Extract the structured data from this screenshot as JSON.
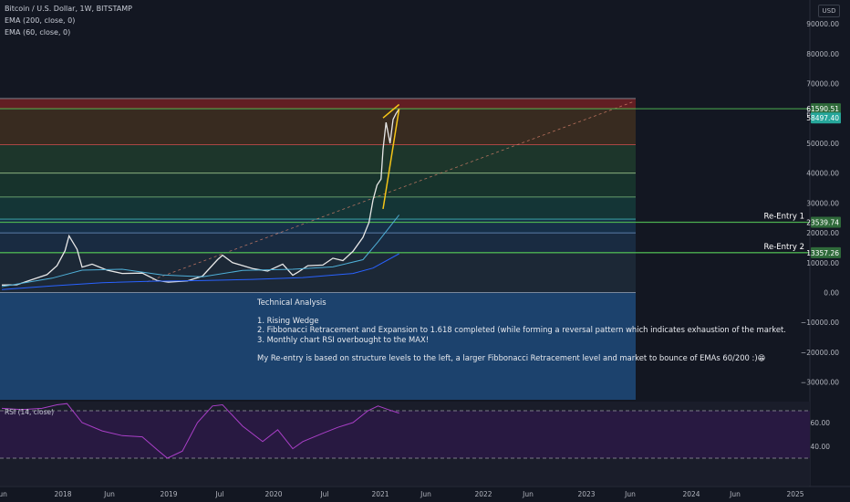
{
  "header": {
    "symbol": "Bitcoin / U.S. Dollar, 1W, BITSTAMP",
    "ema200": "EMA (200, close, 0)",
    "ema60": "EMA (60, close, 0)",
    "currency": "USD"
  },
  "annotation": {
    "title": "Technical Analysis",
    "line1": "1. Rising Wedge",
    "line2": "2. Fibbonacci Retracement and Expansion to 1.618 completed (while forming a reversal pattern which indicates exhaustion of the market.",
    "line3": "3. Monthly chart RSI overbought to the MAX!",
    "line4": "My Re-entry is based on structure levels to the left, a larger Fibbonacci Retracement level and market to bounce of EMAs 60/200 :)",
    "emoji": "😁"
  },
  "colors": {
    "background": "#131722",
    "price": "#e8e8e8",
    "ema200": "#2962ff",
    "ema60": "#4fb0d8",
    "wedge": "#f5c518",
    "level_green": "#4caf50",
    "rsi": "#a93fc7"
  },
  "chart_data": [
    {
      "type": "line",
      "title": "Bitcoin / U.S. Dollar, 1W, BITSTAMP",
      "x_ticks": [
        "Jun",
        "2018",
        "Jun",
        "2019",
        "Jul",
        "2020",
        "Jul",
        "2021",
        "Jun",
        "2022",
        "Jun",
        "2023",
        "Jun",
        "2024",
        "Jun",
        "2025"
      ],
      "y_ticks": [
        90000,
        80000,
        70000,
        60000,
        50000,
        40000,
        30000,
        20000,
        10000,
        0,
        -10000,
        -20000,
        -30000
      ],
      "y_tick_labels": [
        "90000.00",
        "80000.00",
        "70000.00",
        "60000.00",
        "50000.00",
        "40000.00",
        "30000.00",
        "20000.00",
        "10000.00",
        "0.00",
        "−10000.00",
        "−20000.00",
        "−30000.00"
      ],
      "ylim": [
        -35000,
        97000
      ],
      "xlim": [
        2017.3,
        2025.3
      ],
      "grid": false,
      "series": [
        {
          "name": "Bitcoin / U.S. Dollar",
          "x": [
            2017.3,
            2017.45,
            2017.6,
            2017.75,
            2017.85,
            2017.93,
            2017.97,
            2018.05,
            2018.1,
            2018.2,
            2018.35,
            2018.5,
            2018.7,
            2018.85,
            2018.96,
            2019.15,
            2019.3,
            2019.45,
            2019.5,
            2019.6,
            2019.8,
            2019.95,
            2020.1,
            2020.2,
            2020.25,
            2020.35,
            2020.5,
            2020.6,
            2020.7,
            2020.8,
            2020.9,
            2020.96,
            2021.0,
            2021.04,
            2021.08,
            2021.1,
            2021.13,
            2021.17,
            2021.2,
            2021.23,
            2021.26
          ],
          "y": [
            2500,
            2600,
            4300,
            6000,
            9000,
            14000,
            19000,
            14500,
            8500,
            9500,
            7500,
            6400,
            6500,
            4000,
            3500,
            3900,
            5500,
            11000,
            12500,
            10000,
            8000,
            7200,
            9500,
            5800,
            6800,
            9000,
            9200,
            11500,
            10700,
            13800,
            18500,
            23500,
            31000,
            36000,
            38000,
            48000,
            57000,
            50000,
            58000,
            60000,
            61500
          ]
        },
        {
          "name": "EMA (200, close, 0)",
          "x": [
            2017.3,
            2017.8,
            2018.3,
            2018.8,
            2019.3,
            2019.8,
            2020.3,
            2020.8,
            2021.0,
            2021.26
          ],
          "y": [
            1000,
            2200,
            3300,
            3800,
            4000,
            4400,
            5000,
            6400,
            8200,
            13000
          ]
        },
        {
          "name": "EMA (60, close, 0)",
          "x": [
            2017.3,
            2017.8,
            2018.1,
            2018.5,
            2018.9,
            2019.3,
            2019.7,
            2020.2,
            2020.6,
            2020.9,
            2021.05,
            2021.26
          ],
          "y": [
            2000,
            4800,
            7500,
            7800,
            5900,
            5300,
            7400,
            7800,
            8600,
            11000,
            17000,
            26000
          ]
        }
      ],
      "price_labels": [
        61590.51,
        58497.4,
        23539.74,
        13357.26
      ],
      "levels": [
        {
          "label": "Re-Entry 1",
          "value": 23539.74
        },
        {
          "label": "Re-Entry 2",
          "value": 13357.26
        }
      ],
      "fib_levels": [
        65000,
        61590.51,
        49500,
        40000,
        32000,
        24600,
        20000,
        13357.26,
        0
      ]
    },
    {
      "type": "line",
      "title": "RSI (14, close)",
      "y_ticks": [
        60,
        40
      ],
      "y_tick_labels": [
        "60.00",
        "40.00"
      ],
      "ylim": [
        27,
        76
      ],
      "series": [
        {
          "name": "RSI (14, close)",
          "x": [
            2017.3,
            2017.5,
            2017.7,
            2017.85,
            2017.95,
            2018.1,
            2018.3,
            2018.5,
            2018.7,
            2018.85,
            2018.95,
            2019.1,
            2019.25,
            2019.4,
            2019.5,
            2019.7,
            2019.9,
            2020.05,
            2020.2,
            2020.3,
            2020.5,
            2020.65,
            2020.8,
            2020.95,
            2021.05,
            2021.15,
            2021.26
          ],
          "y": [
            72,
            71,
            72,
            75,
            76,
            60,
            53,
            49,
            48,
            37,
            30,
            36,
            60,
            74,
            75,
            57,
            44,
            54,
            38,
            44,
            51,
            56,
            60,
            70,
            74,
            71,
            68
          ]
        }
      ]
    }
  ]
}
